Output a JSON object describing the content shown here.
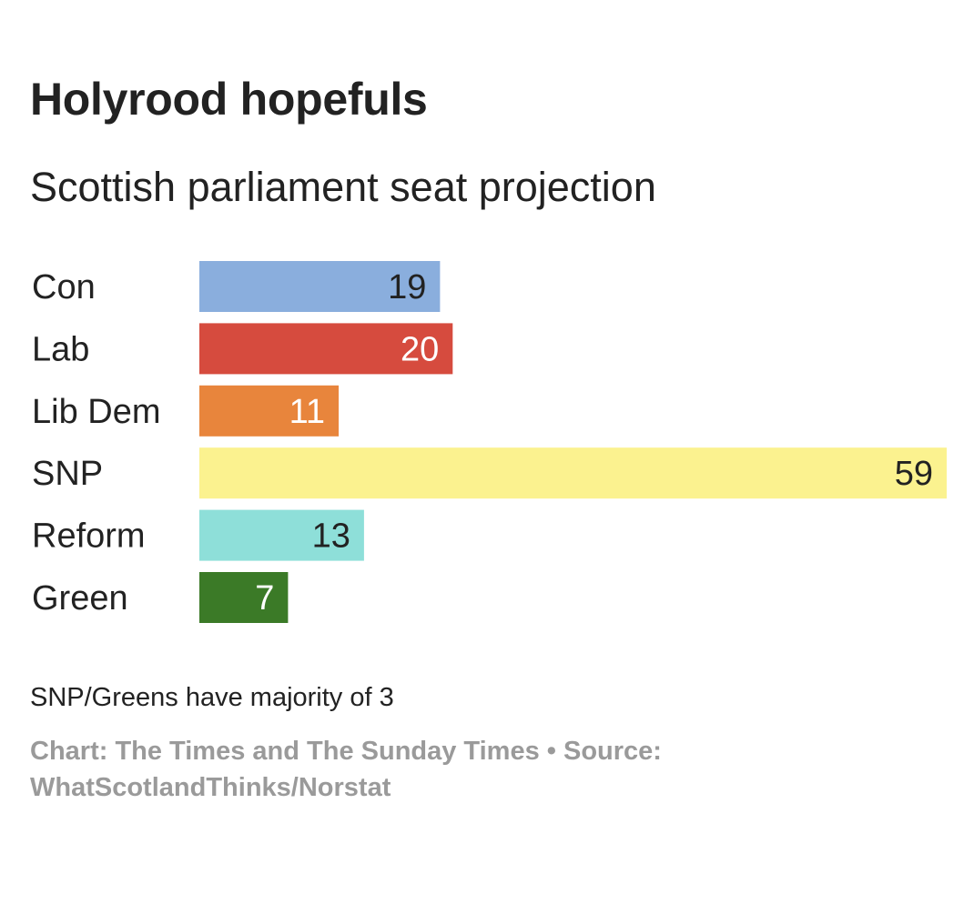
{
  "chart_data": {
    "type": "bar",
    "orientation": "horizontal",
    "title": "Holyrood hopefuls",
    "subtitle": "Scottish parliament seat projection",
    "categories": [
      "Con",
      "Lab",
      "Lib Dem",
      "SNP",
      "Reform",
      "Green"
    ],
    "values": [
      19,
      20,
      11,
      59,
      13,
      7
    ],
    "colors": [
      "#8aaedd",
      "#d64b3e",
      "#e8853c",
      "#fbf28f",
      "#8edfd9",
      "#3b7a27"
    ],
    "value_label_colors": [
      "#222222",
      "#ffffff",
      "#ffffff",
      "#222222",
      "#222222",
      "#ffffff"
    ],
    "xlim": [
      0,
      59
    ],
    "grid": false,
    "legend": "none",
    "note": "SNP/Greens have majority of 3",
    "credit": "Chart: The Times and The Sunday Times • Source: WhatScotlandThinks/Norstat"
  }
}
